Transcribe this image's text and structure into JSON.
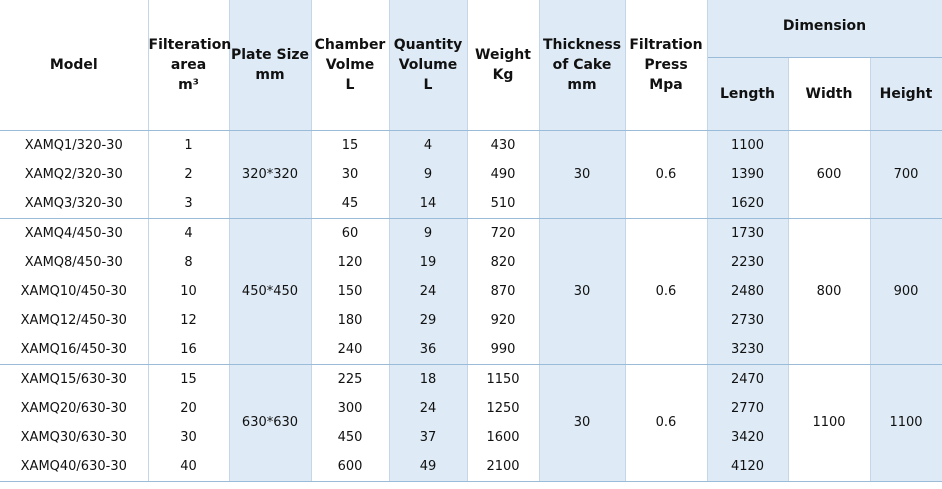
{
  "header": {
    "model": "Model",
    "area": [
      "Filteration",
      "area",
      "m³"
    ],
    "plate": [
      "Plate Size",
      "mm"
    ],
    "chamber": [
      "Chamber",
      "Volme",
      "L"
    ],
    "quantity": [
      "Quantity",
      "Volume",
      "L"
    ],
    "weight": [
      "Weight",
      "Kg"
    ],
    "thickness": [
      "Thickness",
      "of Cake",
      "mm"
    ],
    "press": [
      "Filtration",
      "Press",
      "Mpa"
    ],
    "dimension": "Dimension",
    "length": "Length",
    "width": "Width",
    "height": "Height"
  },
  "groups": [
    {
      "plate_size": "320*320",
      "thickness": 30,
      "press": 0.6,
      "width": 600,
      "height": 700,
      "rows": [
        {
          "model": "XAMQ1/320-30",
          "area": 1,
          "chamber": 15,
          "quantity": 4,
          "weight": 430,
          "length": 1100
        },
        {
          "model": "XAMQ2/320-30",
          "area": 2,
          "chamber": 30,
          "quantity": 9,
          "weight": 490,
          "length": 1390
        },
        {
          "model": "XAMQ3/320-30",
          "area": 3,
          "chamber": 45,
          "quantity": 14,
          "weight": 510,
          "length": 1620
        }
      ]
    },
    {
      "plate_size": "450*450",
      "thickness": 30,
      "press": 0.6,
      "width": 800,
      "height": 900,
      "rows": [
        {
          "model": "XAMQ4/450-30",
          "area": 4,
          "chamber": 60,
          "quantity": 9,
          "weight": 720,
          "length": 1730
        },
        {
          "model": "XAMQ8/450-30",
          "area": 8,
          "chamber": 120,
          "quantity": 19,
          "weight": 820,
          "length": 2230
        },
        {
          "model": "XAMQ10/450-30",
          "area": 10,
          "chamber": 150,
          "quantity": 24,
          "weight": 870,
          "length": 2480
        },
        {
          "model": "XAMQ12/450-30",
          "area": 12,
          "chamber": 180,
          "quantity": 29,
          "weight": 920,
          "length": 2730
        },
        {
          "model": "XAMQ16/450-30",
          "area": 16,
          "chamber": 240,
          "quantity": 36,
          "weight": 990,
          "length": 3230
        }
      ]
    },
    {
      "plate_size": "630*630",
      "thickness": 30,
      "press": 0.6,
      "width": 1100,
      "height": 1100,
      "rows": [
        {
          "model": "XAMQ15/630-30",
          "area": 15,
          "chamber": 225,
          "quantity": 18,
          "weight": 1150,
          "length": 2470
        },
        {
          "model": "XAMQ20/630-30",
          "area": 20,
          "chamber": 300,
          "quantity": 24,
          "weight": 1250,
          "length": 2770
        },
        {
          "model": "XAMQ30/630-30",
          "area": 30,
          "chamber": 450,
          "quantity": 37,
          "weight": 1600,
          "length": 3420
        },
        {
          "model": "XAMQ40/630-30",
          "area": 40,
          "chamber": 600,
          "quantity": 49,
          "weight": 2100,
          "length": 4120
        }
      ]
    }
  ]
}
